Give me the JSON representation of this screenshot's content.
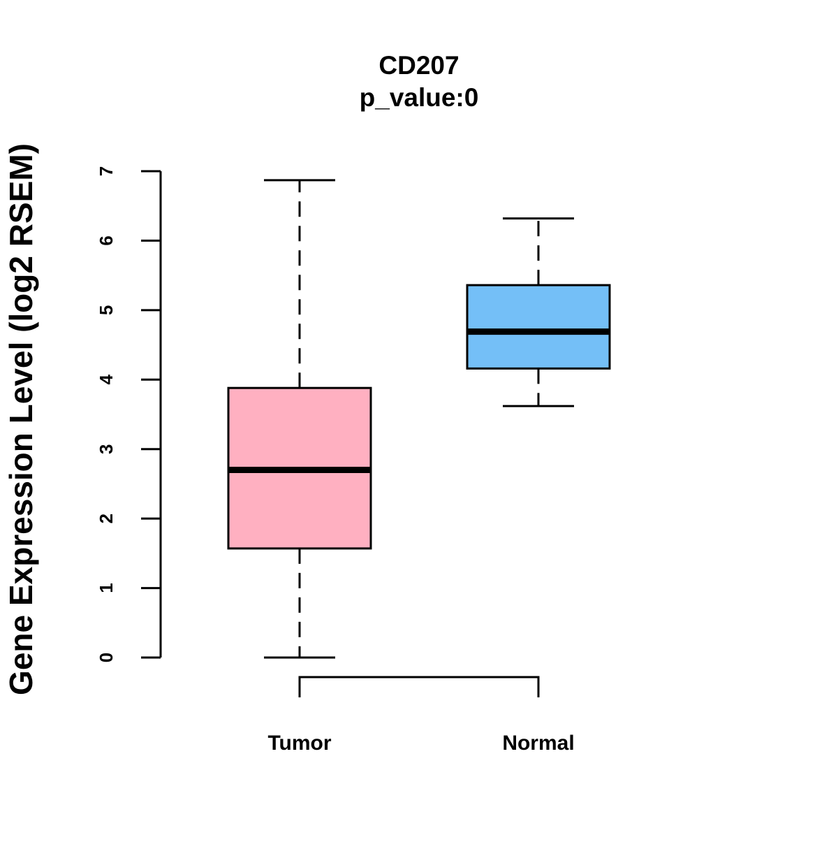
{
  "chart_data": {
    "type": "boxplot",
    "title": "CD207",
    "subtitle": "p_value:0",
    "xlabel": "",
    "ylabel": "Gene Expression Level (log2 RSEM)",
    "ylim": [
      0,
      7
    ],
    "yticks": [
      "0",
      "1",
      "2",
      "3",
      "4",
      "5",
      "6",
      "7"
    ],
    "grid": false,
    "categories": [
      "Tumor",
      "Normal"
    ],
    "series": [
      {
        "name": "Tumor",
        "min": 0.0,
        "q1": 1.57,
        "median": 2.7,
        "q3": 3.88,
        "max": 6.87,
        "color": "#FFB0C1"
      },
      {
        "name": "Normal",
        "min": 3.62,
        "q1": 4.16,
        "median": 4.69,
        "q3": 5.36,
        "max": 6.32,
        "color": "#74BFF7"
      }
    ],
    "comparison_bracket": {
      "from": "Tumor",
      "to": "Normal"
    }
  }
}
